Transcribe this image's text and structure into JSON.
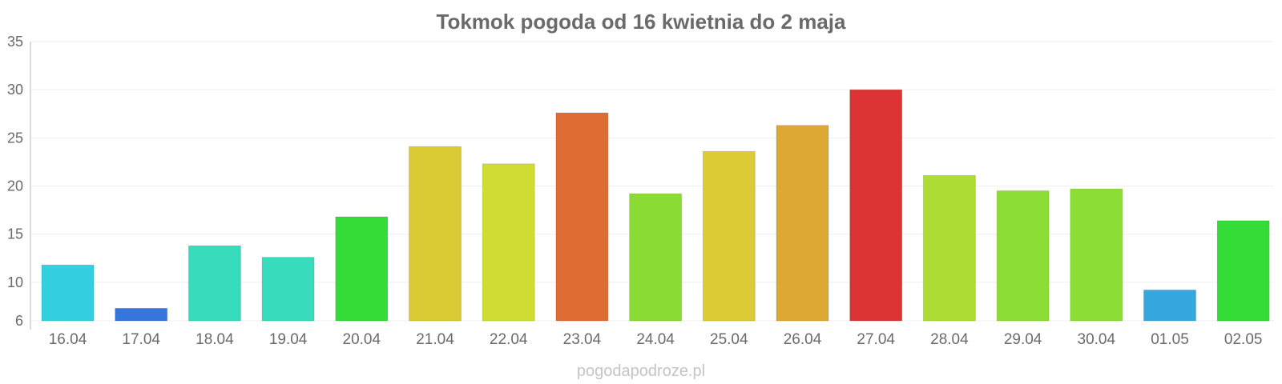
{
  "footer": "pogodapodroze.pl",
  "chart_data": {
    "type": "bar",
    "title": "Tokmok pogoda od 16 kwietnia do 2 maja",
    "xlabel": "",
    "ylabel": "",
    "ylim": [
      6,
      35
    ],
    "yticks": [
      6,
      10,
      15,
      20,
      25,
      30,
      35
    ],
    "grid": true,
    "legend": "none",
    "categories": [
      "16.04",
      "17.04",
      "18.04",
      "19.04",
      "20.04",
      "21.04",
      "22.04",
      "23.04",
      "24.04",
      "25.04",
      "26.04",
      "27.04",
      "28.04",
      "29.04",
      "30.04",
      "01.05",
      "02.05"
    ],
    "values": [
      11.8,
      7.3,
      13.8,
      12.6,
      16.8,
      24.1,
      22.3,
      27.6,
      19.2,
      23.6,
      26.3,
      30.0,
      21.1,
      19.5,
      19.7,
      9.2,
      16.4
    ],
    "colors": [
      "#35d0df",
      "#3675dc",
      "#36dcbb",
      "#36dcbb",
      "#34dc37",
      "#dacb34",
      "#cfdd33",
      "#df6d33",
      "#8adc35",
      "#dccb34",
      "#dda934",
      "#dc3434",
      "#addd34",
      "#8cdd35",
      "#8cdd35",
      "#36a7dc",
      "#34dc37"
    ]
  }
}
